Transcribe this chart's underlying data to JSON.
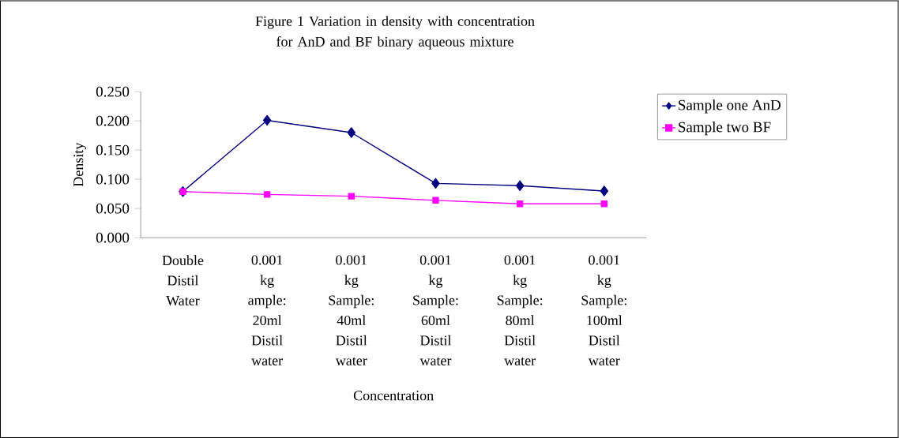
{
  "chart_data": {
    "type": "line",
    "title": "Figure 1 Variation in density with concentration for AnD and BF binary aqueous mixture",
    "xlabel": "Concentration",
    "ylabel": "Density",
    "categories": [
      "Double Distil Water",
      "0.001 kg ample: 20ml Distil water",
      "0.001 kg Sample: 40ml Distil water",
      "0.001 kg Sample: 60ml Distil water",
      "0.001 kg Sample: 80ml Distil water",
      "0.001 kg Sample: 100ml Distil water"
    ],
    "series": [
      {
        "name": "Sample one AnD",
        "color": "#000080",
        "marker": "diamond",
        "values": [
          0.079,
          0.201,
          0.18,
          0.093,
          0.089,
          0.08
        ]
      },
      {
        "name": "Sample two BF",
        "color": "#ff00ff",
        "marker": "square",
        "values": [
          0.079,
          0.074,
          0.071,
          0.064,
          0.058,
          0.058
        ]
      }
    ],
    "ylim": [
      0,
      0.25
    ],
    "yticks": [
      {
        "value": 0,
        "label": "0.000"
      },
      {
        "value": 0.05,
        "label": "0.050"
      },
      {
        "value": 0.1,
        "label": "0.100"
      },
      {
        "value": 0.15,
        "label": "0.150"
      },
      {
        "value": 0.2,
        "label": "0.200"
      },
      {
        "value": 0.25,
        "label": "0.250"
      }
    ],
    "legend": "top right",
    "grid": false,
    "line_style": "solid"
  }
}
